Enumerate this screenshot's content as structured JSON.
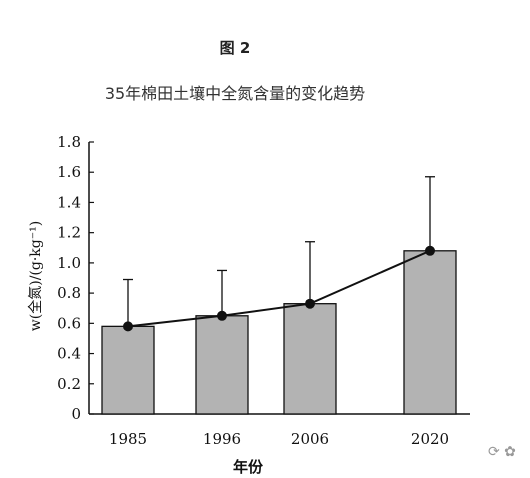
{
  "figure": {
    "label": "图 2",
    "title": "35年棉田土壤中全氮含量的变化趋势"
  },
  "chart_data": {
    "type": "bar",
    "categories": [
      "1985",
      "1996",
      "2006",
      "2020"
    ],
    "values": [
      0.58,
      0.65,
      0.73,
      1.08
    ],
    "error_upper": [
      0.89,
      0.95,
      1.14,
      1.57
    ],
    "line_values": [
      0.58,
      0.65,
      0.73,
      1.08
    ],
    "ylim": [
      0,
      1.8
    ],
    "yticks": [
      "0",
      "0.2",
      "0.4",
      "0.6",
      "0.8",
      "1.0",
      "1.2",
      "1.4",
      "1.6",
      "1.8"
    ],
    "ylabel": "w(全氮)/(g·kg⁻¹)",
    "xlabel": "年份",
    "grid": false,
    "colors": {
      "bar": "#b3b3b3",
      "line": "#111111"
    }
  }
}
